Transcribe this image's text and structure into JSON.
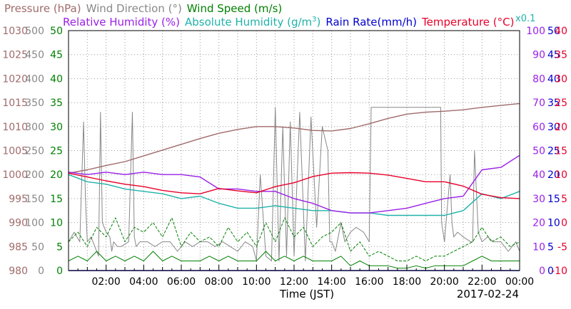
{
  "chart_data": {
    "type": "line",
    "xlabel": "Time (JST)",
    "date": "2017-02-24",
    "x_ticks": [
      "02:00",
      "04:00",
      "06:00",
      "08:00",
      "10:00",
      "12:00",
      "14:00",
      "16:00",
      "18:00",
      "20:00",
      "22:00",
      "00:00"
    ],
    "xlim_hours": [
      0,
      24
    ],
    "grid": true,
    "legend": [
      {
        "label": "Pressure (hPa)",
        "color": "#a06a6a"
      },
      {
        "label": "Wind Direction (°)",
        "color": "#888888"
      },
      {
        "label": "Wind Speed (m/s)",
        "color": "#008000"
      },
      {
        "label": "Relative Humidity (%)",
        "color": "#9b1fe8"
      },
      {
        "label": "Absolute Humidity (g/m",
        "sup": "3",
        "close": ")",
        "color": "#20b2aa"
      },
      {
        "label": "Rain Rate(mm/h)",
        "color": "#0000cc"
      },
      {
        "label": "Temperature (°C)",
        "color": "#e8002a"
      },
      {
        "label": "x0.1",
        "color": "#20b2aa"
      }
    ],
    "axes": {
      "pressure": {
        "ticks": [
          "980",
          "985",
          "990",
          "995",
          "1000",
          "1005",
          "1010",
          "1015",
          "1020",
          "1025",
          "1030"
        ],
        "color": "#a06a6a",
        "ylim": [
          980,
          1030
        ]
      },
      "wind_direction": {
        "ticks": [
          "0",
          "50",
          "100",
          "150",
          "200",
          "250",
          "300",
          "350",
          "400",
          "450",
          "500"
        ],
        "color": "#888888",
        "ylim": [
          0,
          500
        ]
      },
      "wind_speed": {
        "ticks": [
          "0",
          "5",
          "10",
          "15",
          "20",
          "25",
          "30",
          "35",
          "40",
          "45",
          "50"
        ],
        "color": "#008000",
        "ylim": [
          0,
          50
        ]
      },
      "humidity": {
        "ticks": [
          "0",
          "10",
          "20",
          "30",
          "40",
          "50",
          "60",
          "70",
          "80",
          "90",
          "100"
        ],
        "color": "#9b1fe8",
        "ylim": [
          0,
          100
        ]
      },
      "rain_rate": {
        "ticks": [
          "0",
          "5",
          "10",
          "15",
          "20",
          "25",
          "30",
          "35",
          "40",
          "45",
          "50"
        ],
        "color": "#0000cc",
        "ylim": [
          0,
          50
        ]
      },
      "temperature": {
        "ticks": [
          "-10",
          "-5",
          "0",
          "5",
          "10",
          "15",
          "20",
          "25",
          "30",
          "35",
          "40"
        ],
        "color": "#e8002a",
        "ylim": [
          -10,
          40
        ]
      }
    },
    "series": [
      {
        "name": "Pressure (hPa)",
        "color": "#a06a6a",
        "scale": "pressure",
        "x": [
          0,
          1,
          2,
          3,
          4,
          5,
          6,
          7,
          8,
          9,
          10,
          11,
          12,
          13,
          14,
          15,
          16,
          17,
          18,
          19,
          20,
          21,
          22,
          23,
          24
        ],
        "y": [
          1000.3,
          1001,
          1001.9,
          1002.7,
          1003.9,
          1005.1,
          1006.3,
          1007.5,
          1008.6,
          1009.4,
          1010,
          1010,
          1009.7,
          1009.2,
          1009.1,
          1009.6,
          1010.6,
          1011.7,
          1012.6,
          1013,
          1013.2,
          1013.5,
          1014,
          1014.4,
          1014.8
        ]
      },
      {
        "name": "Relative Humidity (%)",
        "color": "#9b1fe8",
        "scale": "humidity",
        "x": [
          0,
          1,
          2,
          3,
          4,
          5,
          6,
          7,
          8,
          9,
          10,
          11,
          12,
          13,
          14,
          15,
          16,
          17,
          18,
          19,
          20,
          21,
          22,
          23,
          24
        ],
        "y": [
          41,
          40,
          41,
          40,
          41,
          40,
          40,
          39,
          34,
          34,
          33,
          33,
          30,
          28,
          25,
          24,
          24,
          25,
          26,
          28,
          30,
          31,
          42,
          43,
          48
        ]
      },
      {
        "name": "Absolute Humidity",
        "color": "#20b2aa",
        "scale": "humidity",
        "x": [
          0,
          1,
          2,
          3,
          4,
          5,
          6,
          7,
          8,
          9,
          10,
          11,
          12,
          13,
          14,
          15,
          16,
          17,
          18,
          19,
          20,
          21,
          22,
          23,
          24
        ],
        "y": [
          40,
          37,
          36,
          34,
          33,
          32,
          30,
          31,
          28,
          26,
          26,
          27,
          26,
          25,
          25,
          24,
          24,
          23,
          23,
          23,
          23,
          25,
          32,
          30,
          33
        ]
      },
      {
        "name": "Temperature (°C)",
        "color": "#e8002a",
        "scale": "temperature",
        "x": [
          0,
          1,
          2,
          3,
          4,
          5,
          6,
          7,
          8,
          9,
          10,
          11,
          12,
          13,
          14,
          15,
          16,
          17,
          18,
          19,
          20,
          21,
          22,
          23,
          24
        ],
        "y": [
          10.3,
          9.5,
          8.7,
          8,
          7.5,
          6.7,
          6.2,
          6,
          7.1,
          6.6,
          6.2,
          7.5,
          8.3,
          9.6,
          10.3,
          10.4,
          10.3,
          9.9,
          9.2,
          8.5,
          8.5,
          7.6,
          5.9,
          5.2,
          5
        ]
      },
      {
        "name": "Wind Direction (°)",
        "color": "#888888",
        "scale": "wind_direction",
        "x": [
          0,
          0.3,
          0.6,
          0.8,
          0.9,
          1.0,
          1.2,
          1.6,
          1.7,
          1.8,
          2.0,
          2.2,
          2.3,
          2.4,
          2.6,
          2.8,
          3.2,
          3.4,
          3.5,
          3.6,
          3.8,
          4.2,
          4.6,
          5.0,
          5.4,
          5.8,
          6.2,
          6.6,
          7.0,
          7.4,
          7.8,
          8.2,
          8.6,
          9.0,
          9.4,
          9.8,
          10.0,
          10.2,
          10.5,
          10.8,
          11.0,
          11.2,
          11.4,
          11.6,
          11.8,
          12.0,
          12.3,
          12.6,
          12.9,
          13.2,
          13.5,
          13.8,
          13.9,
          14.0,
          14.2,
          14.5,
          14.7,
          15.0,
          15.3,
          15.7,
          16.0,
          16.1,
          16.2,
          16.25,
          16.3,
          19.8,
          19.85,
          20.0,
          20.3,
          20.4,
          20.5,
          20.7,
          21.0,
          21.4,
          21.5,
          21.6,
          21.8,
          22.0,
          22.3,
          22.6,
          23.0,
          23.4,
          23.8,
          24
        ],
        "y": [
          60,
          80,
          60,
          310,
          150,
          60,
          70,
          30,
          330,
          100,
          80,
          70,
          40,
          60,
          50,
          50,
          60,
          330,
          70,
          50,
          60,
          60,
          50,
          60,
          60,
          40,
          60,
          50,
          60,
          60,
          50,
          60,
          50,
          40,
          60,
          50,
          20,
          200,
          30,
          20,
          340,
          20,
          300,
          30,
          310,
          30,
          330,
          20,
          320,
          90,
          300,
          250,
          60,
          60,
          40,
          100,
          60,
          80,
          90,
          80,
          60,
          340,
          340,
          340,
          340,
          340,
          100,
          60,
          200,
          100,
          70,
          80,
          70,
          60,
          60,
          250,
          80,
          60,
          70,
          60,
          60,
          40,
          60,
          40
        ]
      },
      {
        "name": "Wind Speed (m/s)",
        "color": "#008000",
        "scale": "wind_speed",
        "style": "dashed",
        "x": [
          0,
          0.5,
          1,
          1.5,
          2,
          2.5,
          3,
          3.5,
          4,
          4.5,
          5,
          5.5,
          6,
          6.5,
          7,
          7.5,
          8,
          8.5,
          9,
          9.5,
          10,
          10.5,
          11,
          11.5,
          12,
          12.5,
          13,
          13.5,
          14,
          14.5,
          15,
          15.5,
          16,
          16.5,
          17,
          17.5,
          18,
          18.5,
          19,
          19.5,
          20,
          20.5,
          21,
          21.5,
          22,
          22.5,
          23,
          23.5,
          24
        ],
        "y": [
          6,
          8,
          5,
          9,
          7,
          11,
          6,
          9,
          8,
          10,
          7,
          11,
          5,
          8,
          6,
          7,
          5,
          9,
          6,
          8,
          5,
          10,
          6,
          11,
          7,
          9,
          5,
          7,
          8,
          10,
          4,
          6,
          3,
          4,
          3,
          2,
          2,
          3,
          2,
          3,
          3,
          4,
          5,
          6,
          9,
          6,
          7,
          5,
          6
        ]
      },
      {
        "name": "Wind Speed mean (m/s)",
        "color": "#008000",
        "scale": "wind_speed",
        "x": [
          0,
          0.5,
          1,
          1.5,
          2,
          2.5,
          3,
          3.5,
          4,
          4.5,
          5,
          5.5,
          6,
          6.5,
          7,
          7.5,
          8,
          8.5,
          9,
          9.5,
          10,
          10.5,
          11,
          11.5,
          12,
          12.5,
          13,
          13.5,
          14,
          14.5,
          15,
          15.5,
          16,
          16.5,
          17,
          17.5,
          18,
          18.5,
          19,
          19.5,
          20,
          20.5,
          21,
          21.5,
          22,
          22.5,
          23,
          23.5,
          24
        ],
        "y": [
          2,
          3,
          2,
          4,
          2,
          3,
          2,
          3,
          2,
          4,
          2,
          3,
          2,
          2,
          2,
          3,
          2,
          3,
          2,
          2,
          2,
          4,
          2,
          3,
          2,
          3,
          2,
          2,
          2,
          3,
          1,
          2,
          1,
          1,
          1,
          0.5,
          0.5,
          1,
          0.5,
          1,
          1,
          1,
          1,
          2,
          3,
          2,
          2,
          2,
          2
        ]
      },
      {
        "name": "Rain Rate(mm/h)",
        "color": "#0000cc",
        "scale": "rain_rate",
        "x": [
          0,
          24
        ],
        "y": [
          0,
          0
        ]
      }
    ]
  }
}
